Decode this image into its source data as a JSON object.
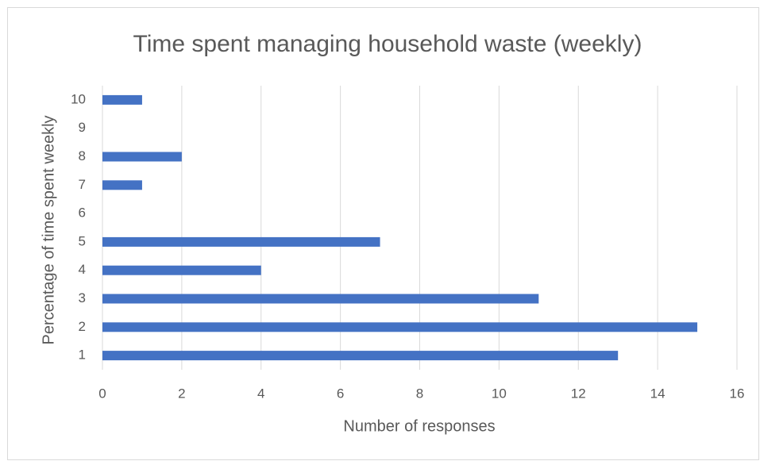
{
  "chart_data": {
    "type": "bar",
    "orientation": "horizontal",
    "title": "Time spent managing household waste (weekly)",
    "x_label": "Number of responses",
    "y_label": "Percentage of time spent weekly",
    "categories": [
      "1",
      "2",
      "3",
      "4",
      "5",
      "6",
      "7",
      "8",
      "9",
      "10"
    ],
    "values": [
      13,
      15,
      11,
      4,
      7,
      0,
      1,
      2,
      0,
      1
    ],
    "color": "#4472c4",
    "xlim": [
      0,
      16
    ],
    "xticks": [
      0,
      2,
      4,
      6,
      8,
      10,
      12,
      14,
      16
    ],
    "grid": true
  }
}
